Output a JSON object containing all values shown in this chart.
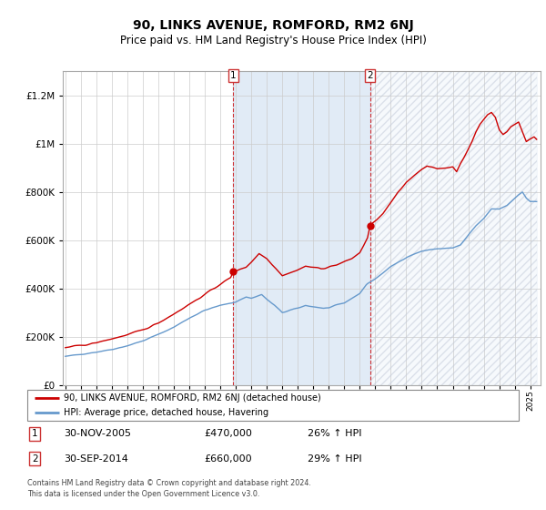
{
  "title": "90, LINKS AVENUE, ROMFORD, RM2 6NJ",
  "subtitle": "Price paid vs. HM Land Registry's House Price Index (HPI)",
  "title_fontsize": 10,
  "subtitle_fontsize": 8.5,
  "legend_label_red": "90, LINKS AVENUE, ROMFORD, RM2 6NJ (detached house)",
  "legend_label_blue": "HPI: Average price, detached house, Havering",
  "footer": "Contains HM Land Registry data © Crown copyright and database right 2024.\nThis data is licensed under the Open Government Licence v3.0.",
  "sale1_date_txt": "30-NOV-2005",
  "sale1_price_txt": "£470,000",
  "sale1_hpi_txt": "26% ↑ HPI",
  "sale2_date_txt": "30-SEP-2014",
  "sale2_price_txt": "£660,000",
  "sale2_hpi_txt": "29% ↑ HPI",
  "ylim": [
    0,
    1300000
  ],
  "yticks": [
    0,
    200000,
    400000,
    600000,
    800000,
    1000000,
    1200000
  ],
  "ytick_labels": [
    "£0",
    "£200K",
    "£400K",
    "£600K",
    "£800K",
    "£1M",
    "£1.2M"
  ],
  "red_color": "#cc0000",
  "blue_color": "#6699cc",
  "sale1_year": 2005,
  "sale1_month": 11,
  "sale1_price": 470000,
  "sale2_year": 2014,
  "sale2_month": 9,
  "sale2_price": 660000,
  "start_year": 1995,
  "start_month": 1,
  "end_year": 2025,
  "end_month": 6
}
